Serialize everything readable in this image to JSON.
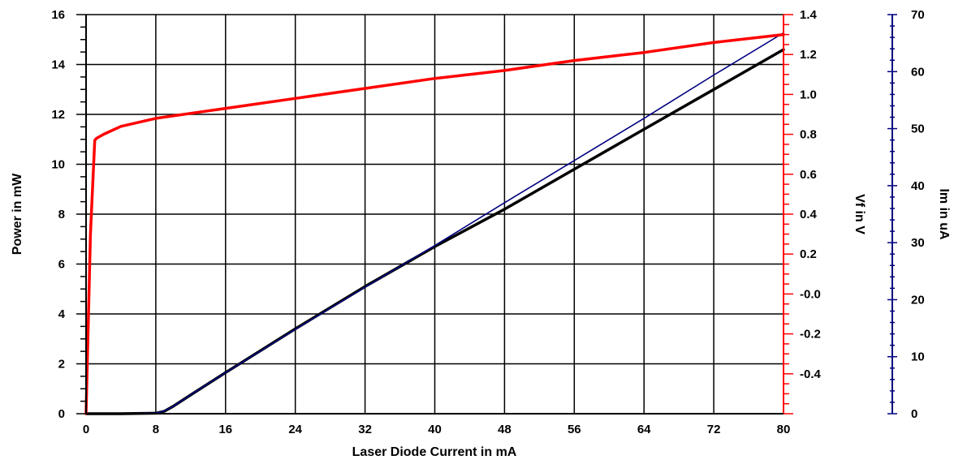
{
  "chart_data": {
    "type": "line",
    "title": "",
    "xlabel": "Laser Diode Current in mA",
    "xlim": [
      0,
      80
    ],
    "x_ticks": [
      "0",
      "8",
      "16",
      "24",
      "32",
      "40",
      "48",
      "56",
      "64",
      "72",
      "80"
    ],
    "grid": true,
    "colors": {
      "power": "#000000",
      "vf": "#ff0000",
      "im": "#000080",
      "grid": "#000000"
    },
    "axes": {
      "power": {
        "label": "Power  in mW",
        "side": "left",
        "ylim": [
          0,
          16
        ],
        "ticks": [
          "0",
          "2",
          "4",
          "6",
          "8",
          "10",
          "12",
          "14",
          "16"
        ]
      },
      "vf": {
        "label": "Vf in V",
        "side": "right",
        "ylim": [
          -0.6,
          1.4
        ],
        "ticks": [
          "1.4",
          "1.2",
          "1.0",
          "0.8",
          "0.6",
          "0.4",
          "0.2",
          "-0.0",
          "-0.2",
          "-0.4"
        ],
        "tick_values": [
          1.4,
          1.2,
          1.0,
          0.8,
          0.6,
          0.4,
          0.2,
          0.0,
          -0.2,
          -0.4
        ]
      },
      "im": {
        "label": "Im in uA",
        "side": "right",
        "ylim": [
          0,
          70
        ],
        "ticks": [
          "0",
          "10",
          "20",
          "30",
          "40",
          "50",
          "60",
          "70"
        ]
      }
    },
    "series": [
      {
        "id": "power",
        "axis": "power",
        "x": [
          0,
          4,
          8,
          9,
          10,
          12,
          16,
          24,
          32,
          40,
          48,
          56,
          64,
          72,
          80
        ],
        "y": [
          0,
          0,
          0.02,
          0.1,
          0.3,
          0.75,
          1.65,
          3.4,
          5.1,
          6.7,
          8.2,
          9.8,
          11.4,
          13.0,
          14.6
        ]
      },
      {
        "id": "vf",
        "axis": "vf",
        "x": [
          0,
          0.5,
          1.0,
          1.2,
          2,
          4,
          8,
          16,
          24,
          32,
          40,
          48,
          56,
          64,
          72,
          80
        ],
        "y": [
          -0.6,
          0.3,
          0.77,
          0.78,
          0.8,
          0.84,
          0.88,
          0.93,
          0.98,
          1.03,
          1.08,
          1.12,
          1.17,
          1.21,
          1.26,
          1.3
        ]
      },
      {
        "id": "im",
        "axis": "im",
        "x": [
          0,
          4,
          8,
          9,
          10,
          12,
          16,
          24,
          32,
          40,
          48,
          56,
          64,
          72,
          80
        ],
        "y": [
          0,
          0,
          0.1,
          0.5,
          1.3,
          3.3,
          7.2,
          14.8,
          22.2,
          29.5,
          37.0,
          44.4,
          51.8,
          59.4,
          66.8
        ]
      }
    ]
  }
}
